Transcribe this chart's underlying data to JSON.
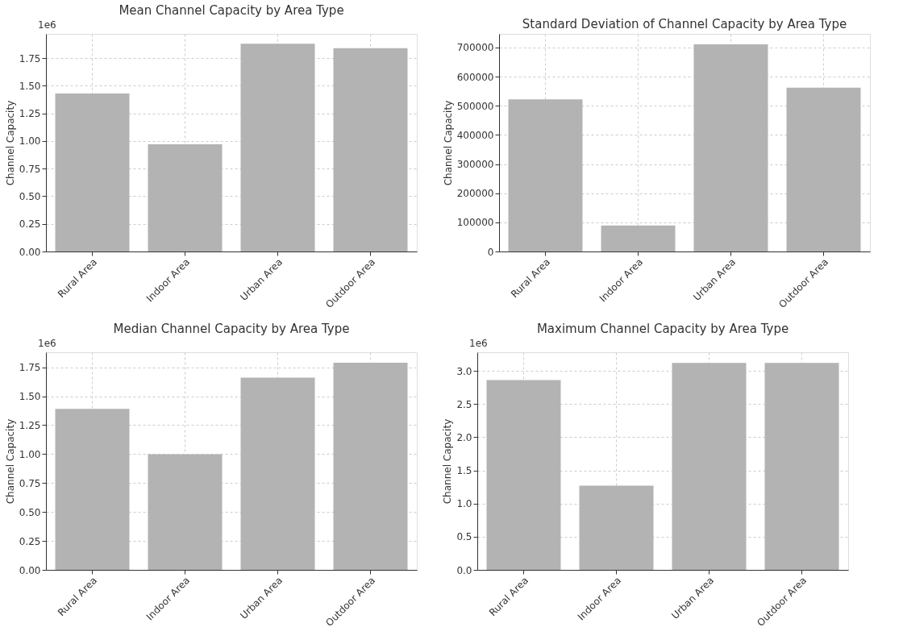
{
  "chart_data": [
    {
      "type": "bar",
      "title": "Mean Channel Capacity by Area Type",
      "ylabel": "Channel Capacity",
      "categories": [
        "Rural Area",
        "Indoor Area",
        "Urban Area",
        "Outdoor Area"
      ],
      "values": [
        1.43,
        0.97,
        1.88,
        1.84
      ],
      "color": "#b3b3b3",
      "ylim": [
        0,
        1.97
      ],
      "yticks": [
        {
          "value": 0,
          "label": "0.00"
        },
        0.25,
        {
          "value": 0.5,
          "label": "0.50"
        },
        0.75,
        {
          "value": 1,
          "label": "1.00"
        },
        1.25,
        {
          "value": 1.5,
          "label": "1.50"
        },
        1.75
      ],
      "annotations": [
        "1e6"
      ],
      "grid": true
    },
    {
      "type": "bar",
      "title": "Standard Deviation of Channel Capacity by Area Type",
      "ylabel": "Channel Capacity",
      "categories": [
        "Rural Area",
        "Indoor Area",
        "Urban Area",
        "Outdoor Area"
      ],
      "values": [
        522000,
        89000,
        711000,
        562000
      ],
      "color": "#b3b3b3",
      "ylim": [
        0,
        747000
      ],
      "yticks": [
        0,
        100000,
        200000,
        300000,
        400000,
        500000,
        600000,
        700000
      ],
      "grid": true
    },
    {
      "type": "bar",
      "title": "Median Channel Capacity by Area Type",
      "ylabel": "Channel Capacity",
      "categories": [
        "Rural Area",
        "Indoor Area",
        "Urban Area",
        "Outdoor Area"
      ],
      "values": [
        1.39,
        1.0,
        1.66,
        1.79
      ],
      "color": "#b3b3b3",
      "ylim": [
        0,
        1.88
      ],
      "yticks": [
        {
          "value": 0,
          "label": "0.00"
        },
        0.25,
        {
          "value": 0.5,
          "label": "0.50"
        },
        0.75,
        {
          "value": 1,
          "label": "1.00"
        },
        1.25,
        {
          "value": 1.5,
          "label": "1.50"
        },
        1.75
      ],
      "annotations": [
        "1e6"
      ],
      "grid": true
    },
    {
      "type": "bar",
      "title": "Maximum Channel Capacity by Area Type",
      "ylabel": "Channel Capacity",
      "categories": [
        "Rural Area",
        "Indoor Area",
        "Urban Area",
        "Outdoor Area"
      ],
      "values": [
        2.86,
        1.27,
        3.12,
        3.12
      ],
      "color": "#b3b3b3",
      "ylim": [
        0,
        3.28
      ],
      "yticks": [
        {
          "value": 0,
          "label": "0.0"
        },
        0.5,
        {
          "value": 1,
          "label": "1.0"
        },
        1.5,
        {
          "value": 2,
          "label": "2.0"
        },
        2.5,
        {
          "value": 3,
          "label": "3.0"
        }
      ],
      "annotations": [
        "1e6"
      ],
      "grid": true
    }
  ]
}
